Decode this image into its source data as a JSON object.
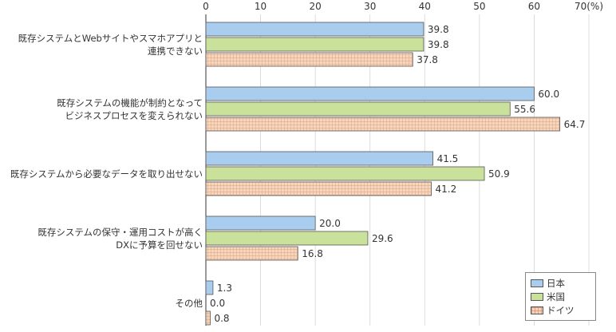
{
  "chart_data": {
    "type": "bar",
    "orientation": "horizontal",
    "categories": [
      [
        "既存システムとWebサイトやスマホアプリと",
        "連携できない"
      ],
      [
        "既存システムの機能が制約となって",
        "ビジネスプロセスを変えられない"
      ],
      [
        "既存システムから必要なデータを取り出せない"
      ],
      [
        "既存システムの保守・運用コストが高く",
        "DXに予算を回せない"
      ],
      [
        "その他"
      ]
    ],
    "series": [
      {
        "name": "日本",
        "values": [
          39.8,
          60.0,
          41.5,
          20.0,
          1.3
        ],
        "color": "#a9cdef"
      },
      {
        "name": "米国",
        "values": [
          39.8,
          55.6,
          50.9,
          29.6,
          0.0
        ],
        "color": "#c9e19a"
      },
      {
        "name": "ドイツ",
        "values": [
          37.8,
          64.7,
          41.2,
          16.8,
          0.8
        ],
        "color": "#f6d6bd",
        "pattern": "grid"
      }
    ],
    "xlim": [
      0,
      70
    ],
    "ticks": [
      0,
      10,
      20,
      30,
      40,
      50,
      60,
      70
    ],
    "tick_labels": [
      "0",
      "10",
      "20",
      "30",
      "40",
      "50",
      "60",
      "70(%)"
    ],
    "grid": true,
    "legend": "bottom-right",
    "title": "",
    "xlabel": "",
    "ylabel": ""
  }
}
